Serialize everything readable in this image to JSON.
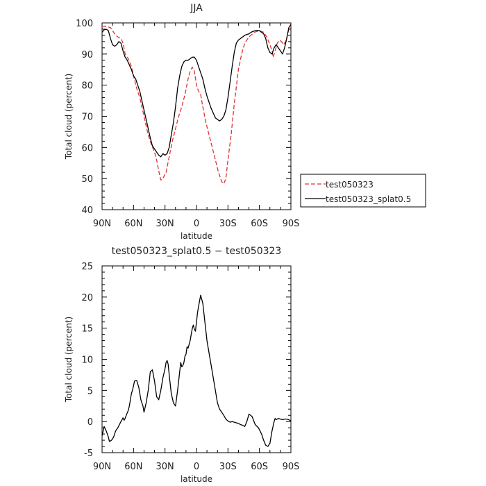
{
  "chart_data": [
    {
      "type": "line",
      "title": "JJA",
      "xlabel": "latitude",
      "ylabel": "Total cloud (percent)",
      "xlim": [
        90,
        -90
      ],
      "ylim": [
        40,
        100
      ],
      "xticks": [
        90,
        60,
        30,
        0,
        -30,
        -60,
        -90
      ],
      "xtick_labels": [
        "90N",
        "60N",
        "30N",
        "0",
        "30S",
        "60S",
        "90S"
      ],
      "yticks": [
        40,
        50,
        60,
        70,
        80,
        90,
        100
      ],
      "legend": "right",
      "series": [
        {
          "name": "test050323",
          "color": "#e03030",
          "dash": "dashed",
          "x": [
            90,
            85,
            82,
            80,
            77,
            74,
            72,
            70,
            68,
            65,
            62,
            60,
            57,
            54,
            50,
            46,
            43,
            40,
            38,
            36,
            34,
            32,
            29,
            26,
            23,
            20,
            17,
            14,
            11,
            8,
            6,
            4,
            2,
            0,
            -2,
            -4,
            -6,
            -9,
            -12,
            -15,
            -18,
            -21,
            -24,
            -26,
            -28,
            -30,
            -33,
            -36,
            -40,
            -43,
            -46,
            -50,
            -55,
            -60,
            -64,
            -67,
            -70,
            -72,
            -73,
            -75,
            -77,
            -79,
            -81,
            -83,
            -85,
            -87,
            -88,
            -90
          ],
          "y": [
            99,
            98.8,
            98.5,
            97.5,
            96,
            95.3,
            95,
            93.5,
            90,
            88.5,
            86,
            83,
            79,
            76,
            70,
            64,
            61,
            58.5,
            56,
            52.5,
            49.5,
            50,
            52,
            57,
            62,
            66,
            70,
            73,
            77,
            82,
            84.5,
            85.8,
            84.5,
            80,
            78,
            77,
            73,
            68,
            64,
            60,
            56,
            52,
            49,
            48.3,
            50,
            56,
            64,
            74,
            85,
            90,
            93.5,
            95.5,
            97,
            97.5,
            97,
            95.5,
            93,
            91,
            89,
            91,
            93.5,
            94.5,
            94,
            93,
            94,
            96.5,
            98,
            99
          ]
        },
        {
          "name": "test050323_splat0.5",
          "color": "#000000",
          "dash": "solid",
          "x": [
            90,
            88,
            86,
            84,
            82,
            80,
            78,
            76,
            74,
            72,
            70,
            68,
            66,
            64,
            62,
            60,
            58,
            56,
            54,
            52,
            50,
            48,
            46,
            44,
            42,
            40,
            38,
            36,
            34,
            32,
            30,
            28,
            26,
            24,
            22,
            20,
            18,
            16,
            14,
            12,
            10,
            8,
            6,
            4,
            2,
            0,
            -2,
            -4,
            -6,
            -8,
            -10,
            -12,
            -14,
            -16,
            -18,
            -20,
            -22,
            -24,
            -26,
            -28,
            -30,
            -32,
            -34,
            -36,
            -38,
            -40,
            -42,
            -44,
            -46,
            -48,
            -50,
            -52,
            -54,
            -56,
            -58,
            -60,
            -62,
            -64,
            -66,
            -68,
            -70,
            -72,
            -74,
            -76,
            -78,
            -80,
            -82,
            -84,
            -86,
            -88,
            -90
          ],
          "y": [
            97,
            97.8,
            98,
            97.5,
            95,
            93,
            92.5,
            93,
            94,
            93.5,
            91,
            89,
            88,
            86.5,
            85,
            83,
            82,
            80,
            78,
            75,
            72,
            69,
            66,
            63,
            60.5,
            59.5,
            58.5,
            57.5,
            57,
            58,
            57.5,
            58,
            60,
            64,
            68,
            73,
            79,
            83,
            86,
            87.5,
            88,
            88,
            88.5,
            89,
            89,
            88,
            86,
            84,
            82,
            79,
            76.5,
            74.5,
            72.5,
            71,
            69.5,
            69,
            68.5,
            69,
            70,
            72,
            76,
            81,
            86,
            90.5,
            93.5,
            94.5,
            95,
            95.5,
            96,
            96.3,
            96.5,
            97,
            97.3,
            97.5,
            97.6,
            97.5,
            97,
            96.5,
            95,
            92,
            90.5,
            90,
            92,
            93,
            92,
            91,
            90,
            92,
            95,
            98.5,
            99.5
          ]
        }
      ]
    },
    {
      "type": "line",
      "title": "test050323_splat0.5 − test050323",
      "xlabel": "latitude",
      "ylabel": "Total cloud (percent)",
      "xlim": [
        90,
        -90
      ],
      "ylim": [
        -5,
        25
      ],
      "xticks": [
        90,
        60,
        30,
        0,
        -30,
        -60,
        -90
      ],
      "xtick_labels": [
        "90N",
        "60N",
        "30N",
        "0",
        "30S",
        "60S",
        "90S"
      ],
      "yticks": [
        -5,
        0,
        5,
        10,
        15,
        20,
        25
      ],
      "series": [
        {
          "color": "#000000",
          "dash": "solid",
          "x": [
            90,
            88,
            86,
            84,
            83,
            81,
            79,
            77,
            75,
            72,
            70,
            69,
            68,
            67,
            65,
            64,
            63,
            62,
            61,
            59,
            57,
            55,
            53,
            51,
            50,
            48,
            46,
            44,
            42,
            40,
            38,
            36,
            34,
            33,
            32,
            30,
            29,
            28,
            27,
            26,
            25,
            24,
            22,
            20,
            18,
            16,
            15,
            14,
            13,
            12,
            11,
            10,
            9,
            8,
            6,
            5,
            4,
            3,
            2,
            1,
            0,
            -1,
            -2,
            -4,
            -6,
            -8,
            -10,
            -12,
            -14,
            -16,
            -18,
            -20,
            -22,
            -24,
            -26,
            -28,
            -30,
            -32,
            -34,
            -36,
            -38,
            -40,
            -42,
            -44,
            -46,
            -48,
            -50,
            -53,
            -56,
            -59,
            -62,
            -64,
            -66,
            -68,
            -70,
            -72,
            -74,
            -75,
            -76,
            -78,
            -80,
            -82,
            -84,
            -86,
            -88,
            -89,
            -90
          ],
          "y": [
            -2.3,
            -0.8,
            -1.5,
            -2.5,
            -3.2,
            -3,
            -2.5,
            -1.5,
            -1,
            0,
            0.6,
            0.2,
            0.5,
            1,
            1.8,
            2.5,
            3.5,
            4.5,
            5,
            6.5,
            6.6,
            5.5,
            3.5,
            2.5,
            1.5,
            3,
            5,
            8,
            8.3,
            6.5,
            4,
            3.5,
            5,
            6,
            7,
            8.5,
            9.5,
            9.8,
            9.2,
            7.5,
            6,
            4.5,
            3,
            2.5,
            5,
            8,
            9.5,
            8.8,
            9,
            9.5,
            10.5,
            10.8,
            12,
            11.8,
            13,
            14,
            15,
            15.5,
            14.8,
            14.5,
            16,
            17.5,
            18.5,
            20.3,
            19,
            16,
            13,
            11,
            9,
            7,
            5,
            3,
            2,
            1.5,
            1,
            0.4,
            0.1,
            -0.1,
            0,
            -0.1,
            -0.2,
            -0.3,
            -0.5,
            -0.6,
            -0.8,
            0,
            1.2,
            0.8,
            -0.5,
            -1,
            -2,
            -3,
            -3.8,
            -4,
            -3.5,
            -1.5,
            0,
            0.5,
            0.3,
            0.5,
            0.4,
            0.3,
            0.4,
            0.4,
            0.3,
            0.2,
            0.1
          ]
        }
      ]
    }
  ]
}
